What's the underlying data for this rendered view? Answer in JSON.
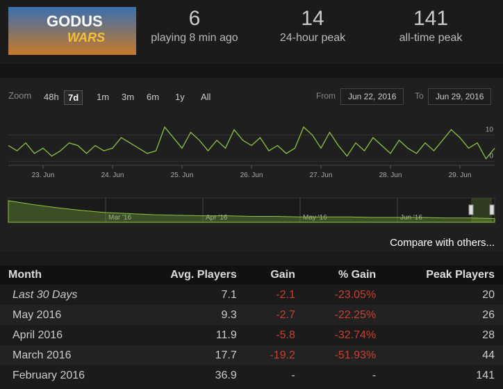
{
  "header": {
    "logo": [
      "GODUS",
      "WARS"
    ],
    "stats": [
      {
        "value": 6,
        "label": "playing 8 min ago"
      },
      {
        "value": 14,
        "label": "24-hour peak"
      },
      {
        "value": 141,
        "label": "all-time peak"
      }
    ]
  },
  "zoom": {
    "label": "Zoom",
    "buttons": [
      "48h",
      "7d",
      "1m",
      "3m",
      "6m",
      "1y",
      "All"
    ],
    "selected": "7d",
    "from_label": "From",
    "from": "Jun 22, 2016",
    "to_label": "To",
    "to": "Jun 29, 2016"
  },
  "chart_data": [
    {
      "type": "line",
      "color": "#8cc63f",
      "grid": true,
      "categories": [
        null,
        null,
        null,
        null,
        "23. Jun",
        null,
        null,
        null,
        null,
        null,
        null,
        null,
        "24. Jun",
        null,
        null,
        null,
        null,
        null,
        null,
        null,
        "25. Jun",
        null,
        null,
        null,
        null,
        null,
        null,
        null,
        "26. Jun",
        null,
        null,
        null,
        null,
        null,
        null,
        null,
        "27. Jun",
        null,
        null,
        null,
        null,
        null,
        null,
        null,
        "28. Jun",
        null,
        null,
        null,
        null,
        null,
        null,
        null,
        "29. Jun",
        null,
        null,
        null,
        null
      ],
      "values": [
        6,
        4,
        7,
        3,
        5,
        2,
        4,
        7,
        6,
        3,
        6,
        4,
        5,
        9,
        7,
        5,
        3,
        4,
        13,
        9,
        5,
        11,
        8,
        4,
        8,
        5,
        12,
        8,
        6,
        9,
        4,
        6,
        3,
        5,
        13,
        10,
        5,
        11,
        6,
        2,
        7,
        4,
        9,
        6,
        3,
        8,
        5,
        3,
        7,
        4,
        8,
        12,
        9,
        5,
        7,
        1,
        5
      ],
      "ylim": [
        -1.5,
        13.5
      ],
      "yticks": [
        0,
        10
      ]
    },
    {
      "type": "area",
      "color": "#8cc63f",
      "categories": [
        null,
        null,
        null,
        null,
        "Mar '16",
        null,
        null,
        null,
        "Apr '16",
        null,
        null,
        null,
        "May '16",
        null,
        null,
        null,
        "Jun '16",
        null,
        null,
        null,
        null
      ],
      "values": [
        40,
        33,
        27,
        22,
        18,
        16,
        14,
        13,
        12,
        12,
        11,
        11,
        10,
        10,
        10,
        9,
        9,
        9,
        8,
        8,
        7
      ],
      "ylim": [
        0,
        45
      ]
    }
  ],
  "compare": "Compare with others...",
  "table": {
    "columns": [
      "Month",
      "Avg. Players",
      "Gain",
      "% Gain",
      "Peak Players"
    ],
    "rows": [
      [
        "Last 30 Days",
        "7.1",
        "-2.1",
        "-23.05%",
        "20"
      ],
      [
        "May 2016",
        "9.3",
        "-2.7",
        "-22.25%",
        "26"
      ],
      [
        "April 2016",
        "11.9",
        "-5.8",
        "-32.74%",
        "28"
      ],
      [
        "March 2016",
        "17.7",
        "-19.2",
        "-51.93%",
        "44"
      ],
      [
        "February 2016",
        "36.9",
        "-",
        "-",
        "141"
      ]
    ]
  }
}
